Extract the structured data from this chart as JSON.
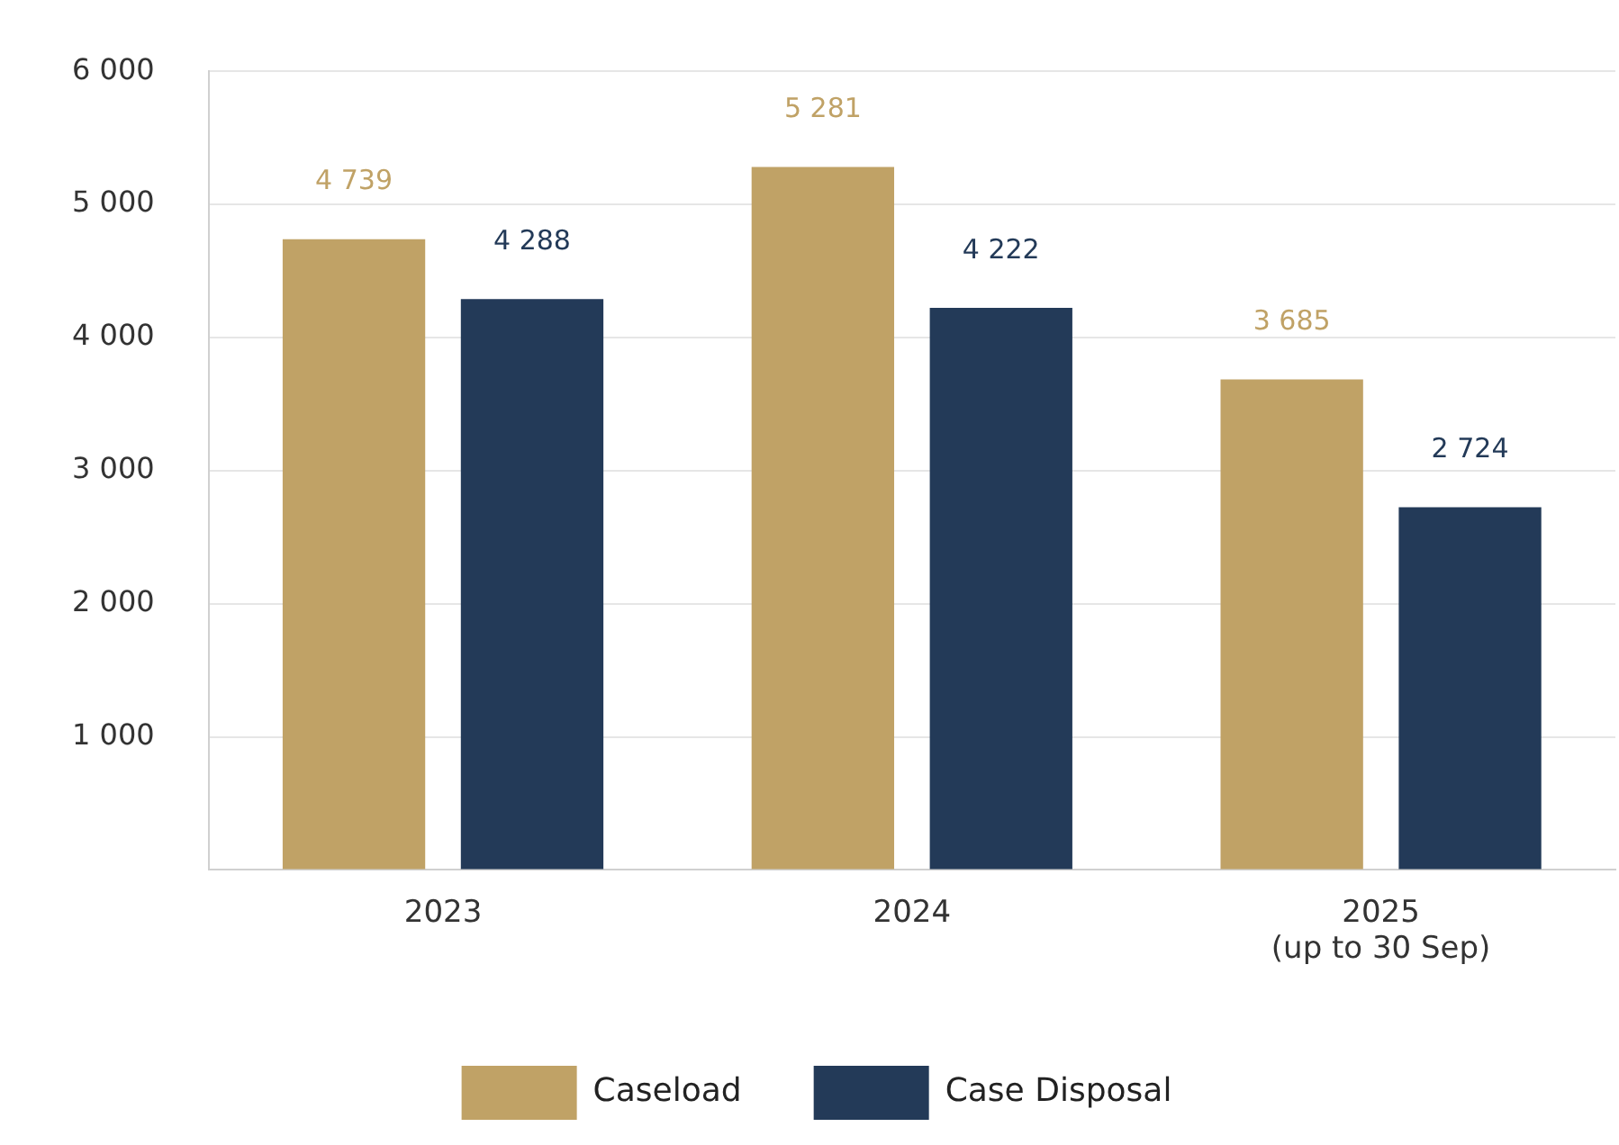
{
  "chart_data": {
    "type": "bar",
    "categories": [
      "2023",
      "2024",
      "2025\n(up to 30 Sep)"
    ],
    "series": [
      {
        "name": "Caseload",
        "color": "#c0a266",
        "values": [
          4739,
          5281,
          3685
        ],
        "value_labels": [
          "4 739",
          "5 281",
          "3 685"
        ]
      },
      {
        "name": "Case Disposal",
        "color": "#233a58",
        "values": [
          4288,
          4222,
          2724
        ],
        "value_labels": [
          "4 288",
          "4 222",
          "2 724"
        ]
      }
    ],
    "ylim": [
      0,
      6000
    ],
    "yticks": [
      {
        "value": 0,
        "label": null
      },
      {
        "value": 1000,
        "label": "1 000"
      },
      {
        "value": 2000,
        "label": "2 000"
      },
      {
        "value": 3000,
        "label": "3 000"
      },
      {
        "value": 4000,
        "label": "4 000"
      },
      {
        "value": 5000,
        "label": "5 000"
      },
      {
        "value": 6000,
        "label": "6 000"
      }
    ],
    "grid": "y",
    "legend": "bottom"
  }
}
